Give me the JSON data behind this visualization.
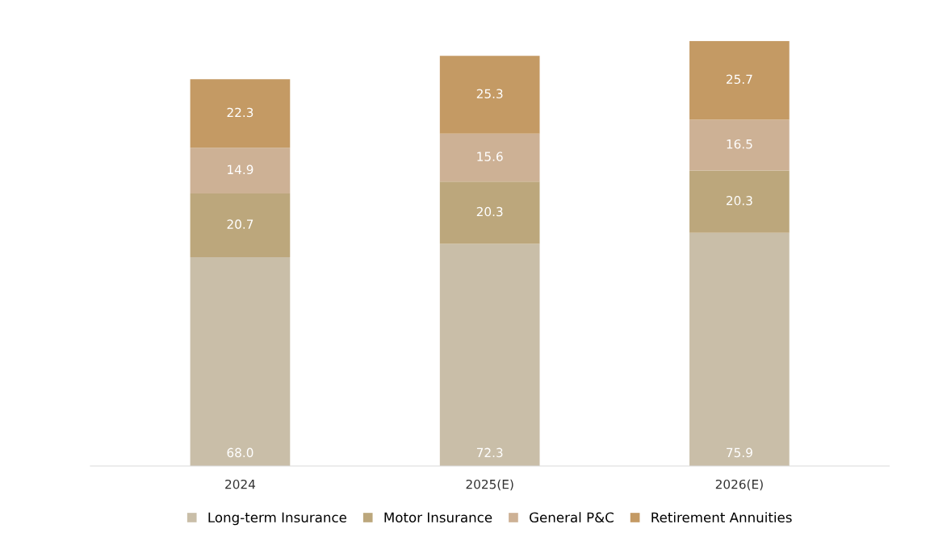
{
  "chart_data": {
    "type": "bar",
    "stacked": true,
    "legend": "bottom",
    "tick_labels": "x",
    "categories": [
      "2024",
      "2025(E)",
      "2026(E)"
    ],
    "series": [
      {
        "name": "Long-term Insurance",
        "color": "#c9bea8",
        "values": [
          68.0,
          72.3,
          75.9
        ],
        "value_labels": [
          "68.0",
          "72.3",
          "75.9"
        ]
      },
      {
        "name": "Motor Insurance",
        "color": "#bca77c",
        "values": [
          20.7,
          20.3,
          20.3
        ],
        "value_labels": [
          "20.7",
          "20.3",
          "20.3"
        ]
      },
      {
        "name": "General P&C",
        "color": "#cdb195",
        "values": [
          14.9,
          15.6,
          16.5
        ],
        "value_labels": [
          "14.9",
          "15.6",
          "16.5"
        ]
      },
      {
        "name": "Retirement Annuities",
        "color": "#c49a64",
        "values": [
          22.3,
          25.3,
          25.7
        ],
        "value_labels": [
          "22.3",
          "25.3",
          "25.7"
        ]
      }
    ]
  }
}
